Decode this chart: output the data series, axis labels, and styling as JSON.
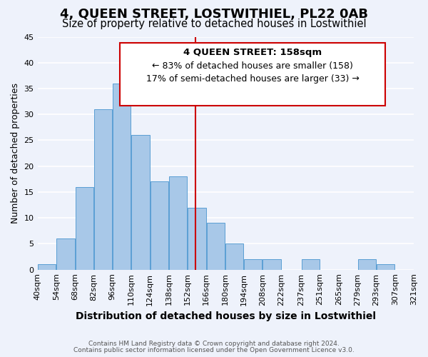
{
  "title": "4, QUEEN STREET, LOSTWITHIEL, PL22 0AB",
  "subtitle": "Size of property relative to detached houses in Lostwithiel",
  "xlabel": "Distribution of detached houses by size in Lostwithiel",
  "ylabel": "Number of detached properties",
  "bar_labels": [
    "40sqm",
    "54sqm",
    "68sqm",
    "82sqm",
    "96sqm",
    "110sqm",
    "124sqm",
    "138sqm",
    "152sqm",
    "166sqm",
    "180sqm",
    "194sqm",
    "208sqm",
    "222sqm",
    "237sqm",
    "251sqm",
    "265sqm",
    "279sqm",
    "293sqm",
    "307sqm",
    "321sqm"
  ],
  "bar_values": [
    1,
    6,
    16,
    31,
    36,
    26,
    17,
    18,
    12,
    9,
    5,
    2,
    2,
    0,
    2,
    0,
    0,
    2,
    1,
    0
  ],
  "bin_edges": [
    40,
    54,
    68,
    82,
    96,
    110,
    124,
    138,
    152,
    166,
    180,
    194,
    208,
    222,
    237,
    251,
    265,
    279,
    293,
    307,
    321
  ],
  "bar_color": "#a8c8e8",
  "bar_edge_color": "#5a9fd4",
  "vline_x": 158,
  "vline_color": "#cc0000",
  "ylim": [
    0,
    45
  ],
  "yticks": [
    0,
    5,
    10,
    15,
    20,
    25,
    30,
    35,
    40,
    45
  ],
  "annotation_title": "4 QUEEN STREET: 158sqm",
  "annotation_line1": "← 83% of detached houses are smaller (158)",
  "annotation_line2": "17% of semi-detached houses are larger (33) →",
  "annotation_box_color": "#ffffff",
  "annotation_box_edge_color": "#cc0000",
  "footer_line1": "Contains HM Land Registry data © Crown copyright and database right 2024.",
  "footer_line2": "Contains public sector information licensed under the Open Government Licence v3.0.",
  "background_color": "#eef2fb",
  "grid_color": "#ffffff",
  "title_fontsize": 13,
  "subtitle_fontsize": 10.5,
  "ylabel_fontsize": 9,
  "xlabel_fontsize": 10,
  "tick_fontsize": 8,
  "footer_fontsize": 6.5,
  "footer_color": "#555555"
}
